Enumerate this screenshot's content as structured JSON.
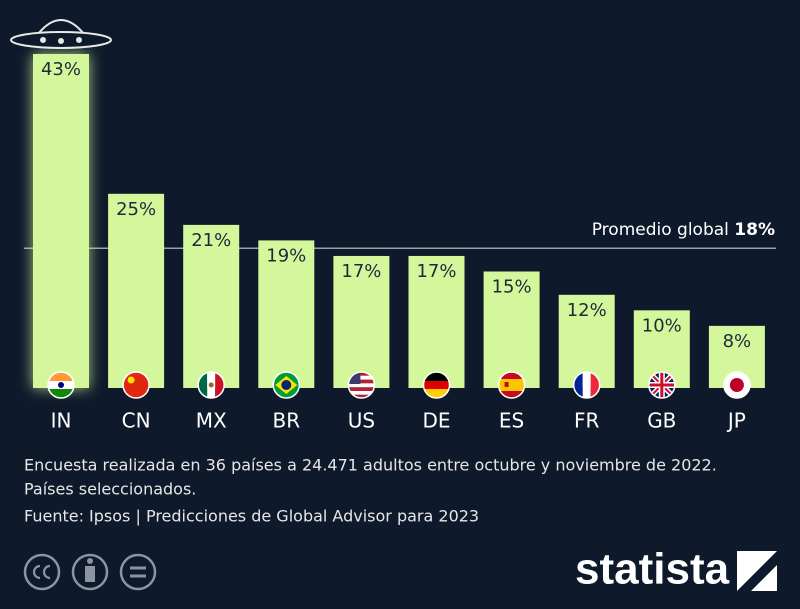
{
  "chart_data": {
    "type": "bar",
    "categories": [
      "IN",
      "CN",
      "MX",
      "BR",
      "US",
      "DE",
      "ES",
      "FR",
      "GB",
      "JP"
    ],
    "values": [
      43,
      25,
      21,
      19,
      17,
      17,
      15,
      12,
      10,
      8
    ],
    "value_labels": [
      "43%",
      "25%",
      "21%",
      "19%",
      "17%",
      "17%",
      "15%",
      "12%",
      "10%",
      "8%"
    ],
    "color": "#d5f79c",
    "average": {
      "label": "Promedio global",
      "value": 18,
      "value_label": "18%"
    }
  },
  "notes": [
    "Encuesta realizada en 36 países a 24.471 adultos entre octubre y noviembre de 2022.",
    "Países seleccionados."
  ],
  "source": "Fuente: Ipsos | Predicciones de Global Advisor para 2023",
  "logo": "statista"
}
